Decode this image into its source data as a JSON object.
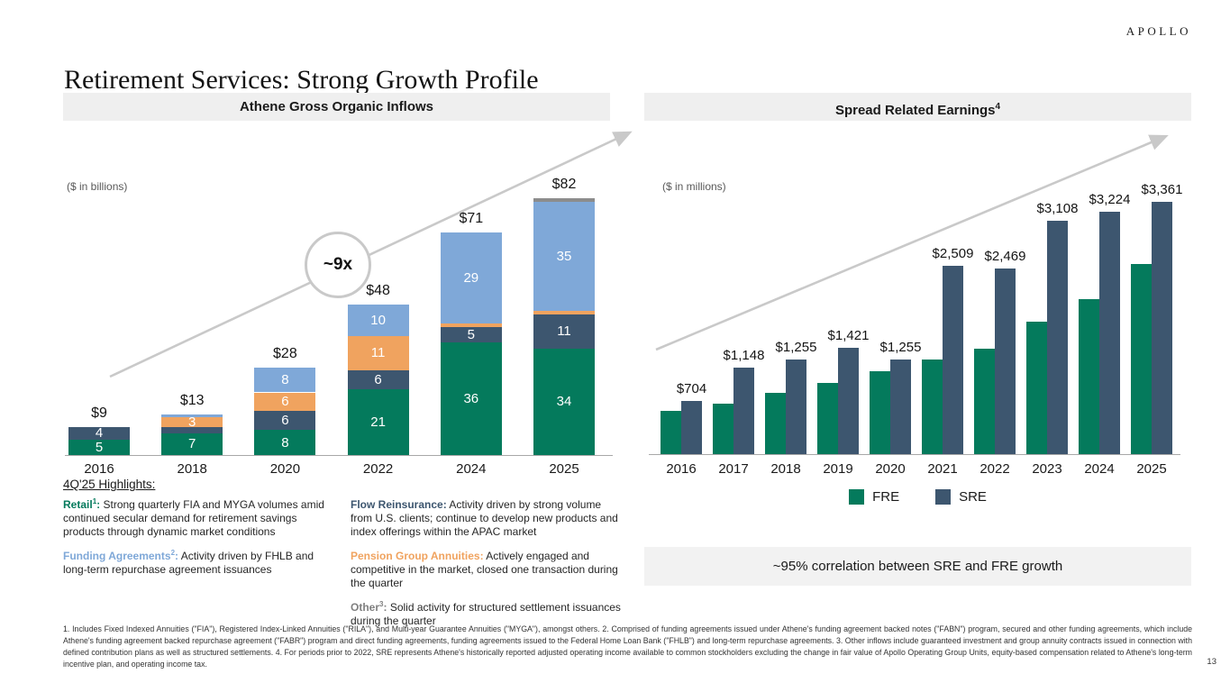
{
  "brand": {
    "logo": "APOLLO"
  },
  "page": {
    "title": "Retirement Services: Strong Growth Profile",
    "page_number": "13"
  },
  "left_panel": {
    "header": "Athene Gross Organic Inflows",
    "units": "($ in billions)",
    "growth_badge": "~9x"
  },
  "right_panel": {
    "header": "Spread Related Earnings",
    "header_sup": "4",
    "units": "($ in millions)",
    "callout": "~95% correlation between SRE and FRE growth"
  },
  "highlights": {
    "heading": "4Q'25 Highlights:",
    "items": [
      {
        "label": "Retail",
        "sup": "1",
        "suffix": ":",
        "color": "#047A5C",
        "text": "Strong quarterly FIA and MYGA volumes amid continued secular demand for retirement savings products through dynamic market conditions"
      },
      {
        "label": "Funding Agreements",
        "sup": "2",
        "suffix": ":",
        "color": "#7FA8D8",
        "text": "Activity driven by FHLB and long-term repurchase agreement issuances"
      },
      {
        "label": "Flow Reinsurance",
        "sup": "",
        "suffix": ":",
        "color": "#3D566F",
        "text": "Activity driven by strong volume from U.S. clients; continue to develop new products and index offerings within the APAC market"
      },
      {
        "label": "Pension Group Annuities",
        "sup": "",
        "suffix": ":",
        "color": "#F0A35F",
        "text": "Actively engaged and competitive in the market, closed one transaction during the quarter"
      },
      {
        "label": "Other",
        "sup": "3",
        "suffix": ":",
        "color": "#7F7F7F",
        "text": "Solid activity for structured settlement issuances during the quarter"
      }
    ]
  },
  "footnote": "1. Includes Fixed Indexed Annuities (\"FIA\"), Registered Index-Linked Annuities (\"RILA\"), and Multi-year Guarantee Annuities (\"MYGA\"), amongst others. 2. Comprised of funding agreements issued under Athene's funding agreement backed notes (\"FABN\") program, secured and other funding agreements, which include Athene's funding agreement backed repurchase agreement (\"FABR\") program and direct funding agreements, funding agreements issued to the Federal Home Loan Bank (\"FHLB\") and long-term repurchase agreements. 3. Other inflows include guaranteed investment and group annuity contracts issued in connection with defined contribution plans as well as structured settlements. 4. For periods prior to 2022, SRE represents Athene's historically reported adjusted operating income available to common stockholders excluding the change in fair value of Apollo Operating Group Units, equity-based compensation related to Athene's long-term incentive plan, and operating income tax.",
  "chart_data": [
    {
      "type": "bar",
      "subtype": "stacked",
      "title": "Athene Gross Organic Inflows",
      "units": "$ in billions",
      "categories": [
        "2016",
        "2018",
        "2020",
        "2022",
        "2024",
        "2025"
      ],
      "series": [
        {
          "name": "Retail",
          "color": "#047A5C",
          "values": [
            5,
            7,
            8,
            21,
            36,
            34
          ]
        },
        {
          "name": "Flow Reinsurance",
          "color": "#3D566F",
          "values": [
            4,
            2,
            6,
            6,
            5,
            11
          ]
        },
        {
          "name": "Pension Group Annuities",
          "color": "#F0A35F",
          "values": [
            0,
            3,
            6,
            11,
            1,
            1
          ]
        },
        {
          "name": "Funding Agreements",
          "color": "#7FA8D8",
          "values": [
            0,
            1,
            8,
            10,
            29,
            35
          ]
        },
        {
          "name": "Other",
          "color": "#8C8C8C",
          "values": [
            0,
            0,
            0,
            0,
            0,
            1
          ]
        }
      ],
      "totals": [
        "$9",
        "$13",
        "$28",
        "$48",
        "$71",
        "$82"
      ],
      "annotation": "~9x",
      "ylim": [
        0,
        82
      ],
      "grid": false,
      "notes": "segment values under 3 are unlabeled on chart; series names inferred from color-coded highlight text"
    },
    {
      "type": "bar",
      "subtype": "grouped",
      "title": "Spread Related Earnings",
      "units": "$ in millions",
      "categories": [
        "2016",
        "2017",
        "2018",
        "2019",
        "2020",
        "2021",
        "2022",
        "2023",
        "2024",
        "2025"
      ],
      "series": [
        {
          "name": "FRE",
          "color": "#047A5C",
          "values": [
            575,
            670,
            815,
            945,
            1100,
            1255,
            1400,
            1770,
            2060,
            2535
          ],
          "note": "bars unlabeled on chart; values estimated from bar heights"
        },
        {
          "name": "SRE",
          "color": "#3D566F",
          "values": [
            704,
            1148,
            1255,
            1421,
            1255,
            2509,
            2469,
            3108,
            3224,
            3361
          ]
        }
      ],
      "data_labels": [
        "$704",
        "$1,148",
        "$1,255",
        "$1,421",
        "$1,255",
        "$2,509",
        "$2,469",
        "$3,108",
        "$3,224",
        "$3,361"
      ],
      "legend": [
        "FRE",
        "SRE"
      ],
      "legend_position": "bottom",
      "ylim": [
        0,
        3400
      ],
      "grid": false
    }
  ]
}
